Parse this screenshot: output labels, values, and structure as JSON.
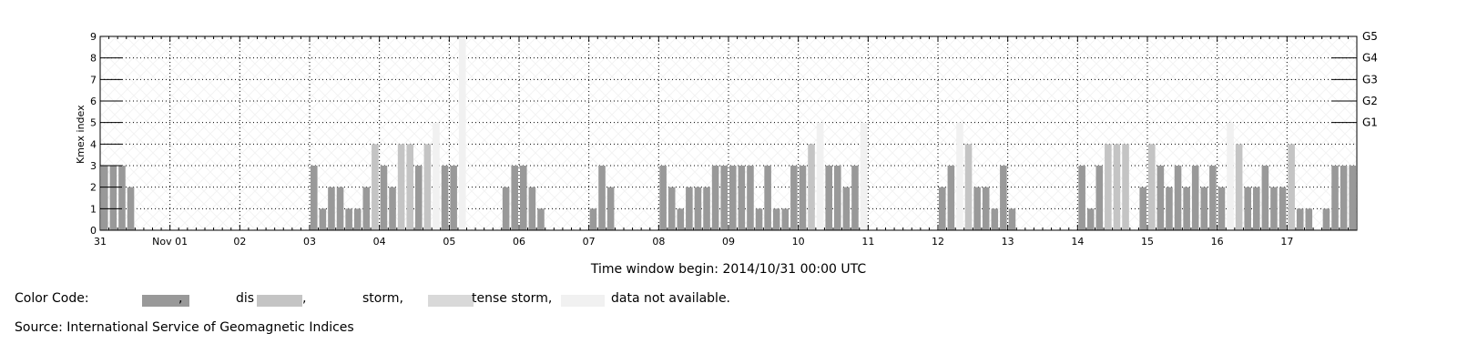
{
  "chart_data": {
    "type": "bar",
    "ylabel": "Kmex index",
    "xlabel": "Time window begin: 2014/10/31 00:00 UTC",
    "ylim": [
      0,
      9
    ],
    "y_ticks": [
      "0",
      "1",
      "2",
      "3",
      "4",
      "5",
      "6",
      "7",
      "8",
      "9"
    ],
    "storm_levels": [
      {
        "label": "G1",
        "value": 5
      },
      {
        "label": "G2",
        "value": 6
      },
      {
        "label": "G3",
        "value": 7
      },
      {
        "label": "G4",
        "value": 8
      },
      {
        "label": "G5",
        "value": 9
      }
    ],
    "x_tick_labels": [
      "31",
      "Nov 01",
      "02",
      "03",
      "04",
      "05",
      "06",
      "07",
      "08",
      "09",
      "10",
      "11",
      "12",
      "13",
      "14",
      "15",
      "16",
      "17"
    ],
    "bins_per_day": 8,
    "grid": true,
    "colors": {
      "quiet": "#999999",
      "disturbed": "#c4c4c4",
      "storm": "#cfcfcf",
      "intense_storm": "#d9d9d9",
      "not_available": "#f1f1f1",
      "grid": "#000000"
    },
    "values": [
      3,
      3,
      3,
      2,
      null,
      null,
      null,
      null,
      null,
      null,
      null,
      null,
      null,
      null,
      null,
      null,
      null,
      null,
      null,
      null,
      null,
      null,
      null,
      null,
      3,
      1,
      2,
      2,
      1,
      1,
      2,
      4,
      3,
      2,
      4,
      4,
      3,
      4,
      5,
      3,
      3,
      9,
      null,
      null,
      null,
      null,
      2,
      3,
      3,
      2,
      1,
      null,
      null,
      null,
      null,
      null,
      1,
      3,
      2,
      null,
      null,
      null,
      null,
      null,
      3,
      2,
      1,
      2,
      2,
      2,
      3,
      3,
      3,
      3,
      3,
      1,
      3,
      1,
      1,
      3,
      3,
      4,
      5,
      3,
      3,
      2,
      3,
      5,
      null,
      null,
      null,
      null,
      null,
      null,
      null,
      null,
      2,
      3,
      5,
      4,
      2,
      2,
      1,
      3,
      1,
      null,
      null,
      null,
      null,
      null,
      null,
      null,
      3,
      1,
      3,
      4,
      4,
      4,
      null,
      2,
      4,
      3,
      2,
      3,
      2,
      3,
      2,
      3,
      2,
      5,
      4,
      2,
      2,
      3,
      2,
      2,
      4,
      1,
      1,
      null,
      1,
      3,
      3,
      3
    ],
    "levels": [
      "q",
      "q",
      "q",
      "q",
      "",
      "",
      "",
      "",
      "",
      "",
      "",
      "",
      "",
      "",
      "",
      "",
      "",
      "",
      "",
      "",
      "",
      "",
      "",
      "",
      "q",
      "q",
      "q",
      "q",
      "q",
      "q",
      "q",
      "d",
      "q",
      "q",
      "d",
      "d",
      "q",
      "d",
      "n",
      "q",
      "q",
      "n",
      "",
      "",
      "",
      "",
      "q",
      "q",
      "q",
      "q",
      "q",
      "",
      "",
      "",
      "",
      "",
      "q",
      "q",
      "q",
      "",
      "",
      "",
      "",
      "",
      "q",
      "q",
      "q",
      "q",
      "q",
      "q",
      "q",
      "q",
      "q",
      "q",
      "q",
      "q",
      "q",
      "q",
      "q",
      "q",
      "q",
      "d",
      "n",
      "q",
      "q",
      "q",
      "q",
      "n",
      "",
      "",
      "",
      "",
      "",
      "",
      "",
      "",
      "q",
      "q",
      "n",
      "d",
      "q",
      "q",
      "q",
      "q",
      "q",
      "",
      "",
      "",
      "",
      "",
      "",
      "",
      "q",
      "q",
      "q",
      "d",
      "d",
      "d",
      "",
      "q",
      "d",
      "q",
      "q",
      "q",
      "q",
      "q",
      "q",
      "q",
      "q",
      "n",
      "d",
      "q",
      "q",
      "q",
      "q",
      "q",
      "d",
      "q",
      "q",
      "",
      "q",
      "q",
      "q",
      "q"
    ]
  },
  "legend": {
    "label": "Color Code:",
    "items": [
      {
        "text": ",",
        "color": "#999999"
      },
      {
        "text": "dis",
        "color": "#c4c4c4",
        "suffix": ","
      },
      {
        "text": "storm,"
      },
      {
        "text": "tense storm,",
        "color": "#d9d9d9"
      },
      {
        "text": "data not available.",
        "color": "#f1f1f1"
      }
    ]
  },
  "source": "Source: International Service of Geomagnetic Indices"
}
